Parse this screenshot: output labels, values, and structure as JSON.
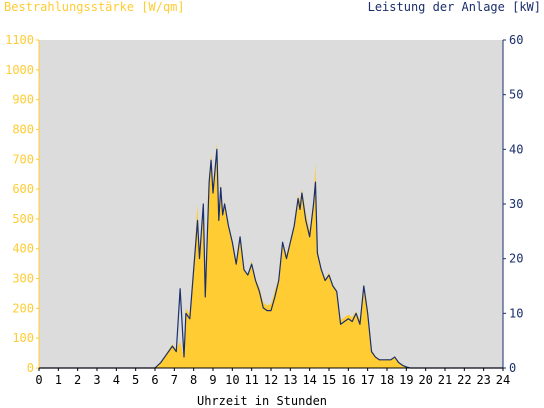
{
  "chart_data": {
    "type": "area",
    "xlabel": "Uhrzeit in Stunden",
    "ylabel_left": "Bestrahlungsstärke [W/qm]",
    "ylabel_right": "Leistung der Anlage [kW]",
    "xlim": [
      0,
      24
    ],
    "ylim_left": [
      0,
      1100
    ],
    "ylim_right": [
      0,
      60
    ],
    "x_ticks": [
      0,
      1,
      2,
      3,
      4,
      5,
      6,
      7,
      8,
      9,
      10,
      11,
      12,
      13,
      14,
      15,
      16,
      17,
      18,
      19,
      20,
      21,
      22,
      23,
      24
    ],
    "y_ticks_left": [
      0,
      100,
      200,
      300,
      400,
      500,
      600,
      700,
      800,
      900,
      1000,
      1100
    ],
    "y_ticks_right": [
      0,
      10,
      20,
      30,
      40,
      50,
      60
    ],
    "grid": false,
    "colors": {
      "irradiance_fill": "#ffcc33",
      "power_line": "#1a2f6b",
      "plot_background": "#dcdcdc",
      "left_axis": "#ffcc33",
      "right_axis": "#1a2f6b"
    },
    "series": [
      {
        "name": "Bestrahlungsstärke [W/qm]",
        "kind": "area",
        "axis": "left",
        "x": [
          0,
          6,
          6.3,
          6.6,
          6.9,
          7.1,
          7.3,
          7.5,
          7.6,
          7.8,
          8.0,
          8.2,
          8.3,
          8.5,
          8.6,
          8.8,
          8.9,
          9.0,
          9.1,
          9.2,
          9.3,
          9.4,
          9.5,
          9.6,
          9.8,
          10.0,
          10.2,
          10.4,
          10.6,
          10.8,
          11.0,
          11.2,
          11.4,
          11.6,
          11.8,
          12.0,
          12.2,
          12.4,
          12.6,
          12.8,
          13.0,
          13.2,
          13.4,
          13.5,
          13.6,
          13.8,
          14.0,
          14.2,
          14.3,
          14.4,
          14.6,
          14.8,
          15.0,
          15.2,
          15.4,
          15.6,
          15.8,
          16.0,
          16.2,
          16.4,
          16.6,
          16.8,
          17.0,
          17.2,
          17.4,
          17.6,
          17.8,
          18.0,
          18.2,
          18.4,
          18.6,
          18.8,
          19.0,
          19.2,
          24
        ],
        "y": [
          0,
          0,
          20,
          50,
          80,
          60,
          90,
          30,
          200,
          180,
          350,
          550,
          380,
          560,
          250,
          650,
          720,
          600,
          680,
          760,
          500,
          620,
          520,
          560,
          480,
          420,
          360,
          440,
          330,
          310,
          360,
          300,
          270,
          220,
          210,
          215,
          260,
          300,
          420,
          380,
          430,
          480,
          580,
          560,
          600,
          520,
          460,
          560,
          690,
          400,
          330,
          300,
          320,
          280,
          260,
          160,
          170,
          180,
          170,
          190,
          160,
          280,
          200,
          60,
          40,
          30,
          28,
          30,
          28,
          40,
          20,
          10,
          3,
          0,
          0
        ]
      },
      {
        "name": "Leistung der Anlage [kW]",
        "kind": "line",
        "axis": "right",
        "x": [
          0,
          6,
          6.3,
          6.6,
          6.9,
          7.1,
          7.3,
          7.5,
          7.6,
          7.8,
          8.0,
          8.2,
          8.3,
          8.5,
          8.6,
          8.8,
          8.9,
          9.0,
          9.1,
          9.2,
          9.3,
          9.4,
          9.5,
          9.6,
          9.8,
          10.0,
          10.2,
          10.4,
          10.6,
          10.8,
          11.0,
          11.2,
          11.4,
          11.6,
          11.8,
          12.0,
          12.2,
          12.4,
          12.6,
          12.8,
          13.0,
          13.2,
          13.4,
          13.5,
          13.6,
          13.8,
          14.0,
          14.2,
          14.3,
          14.4,
          14.6,
          14.8,
          15.0,
          15.2,
          15.4,
          15.6,
          15.8,
          16.0,
          16.2,
          16.4,
          16.6,
          16.8,
          17.0,
          17.2,
          17.4,
          17.6,
          17.8,
          18.0,
          18.2,
          18.4,
          18.6,
          18.8,
          19.0,
          19.2,
          24
        ],
        "y": [
          0,
          0,
          1,
          2.5,
          4,
          3,
          14.5,
          2,
          10,
          9,
          18,
          27,
          20,
          30,
          13,
          34,
          38,
          32,
          36,
          40,
          27,
          33,
          28,
          30,
          26,
          23,
          19,
          24,
          18,
          17,
          19,
          16,
          14,
          11,
          10.5,
          10.5,
          13,
          16,
          23,
          20,
          23,
          26,
          31,
          29,
          32,
          27,
          24,
          30,
          34,
          21,
          18,
          16,
          17,
          15,
          14,
          8,
          8.5,
          9,
          8.5,
          10,
          8,
          15,
          10,
          3,
          2,
          1.5,
          1.5,
          1.5,
          1.5,
          2,
          1,
          0.5,
          0.2,
          0,
          0
        ]
      }
    ]
  }
}
